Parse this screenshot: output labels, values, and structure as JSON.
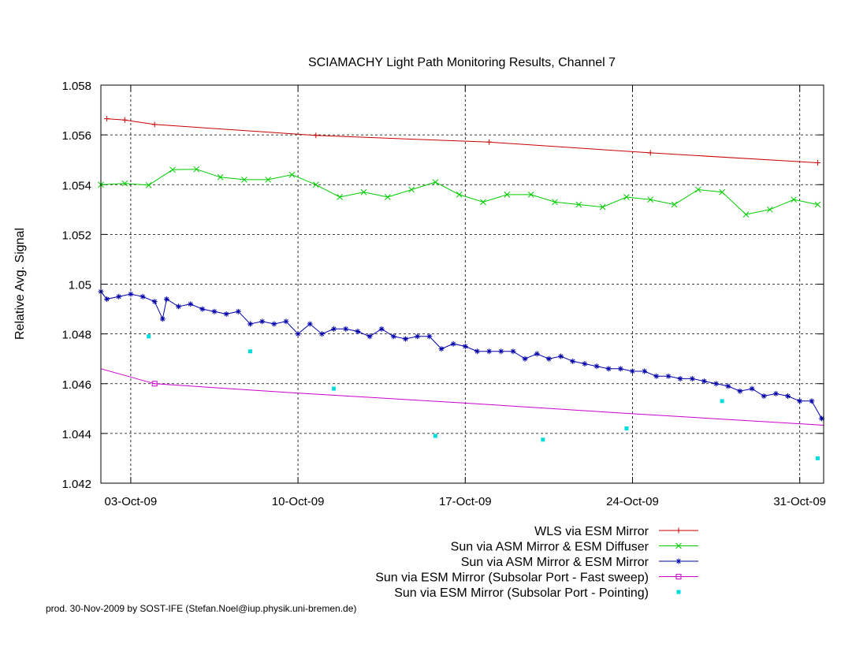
{
  "chart_data": {
    "type": "line",
    "title": "SCIAMACHY Light Path Monitoring Results, Channel 7",
    "ylabel": "Relative Avg. Signal",
    "xlabel": "",
    "x_axis_type": "date",
    "xlim": [
      "2009-10-01T18:00",
      "2009-11-01T00:00"
    ],
    "ylim": [
      1.042,
      1.058
    ],
    "yticks": [
      1.042,
      1.044,
      1.046,
      1.048,
      1.05,
      1.052,
      1.054,
      1.056,
      1.058
    ],
    "ytick_labels": [
      "1.042",
      "1.044",
      "1.046",
      "1.048",
      "1.05",
      "1.052",
      "1.054",
      "1.056",
      "1.058"
    ],
    "xticks": [
      "2009-10-03",
      "2009-10-10",
      "2009-10-17",
      "2009-10-24",
      "2009-10-31"
    ],
    "xtick_labels": [
      "03-Oct-09",
      "10-Oct-09",
      "17-Oct-09",
      "24-Oct-09",
      "31-Oct-09"
    ],
    "grid": true,
    "legend_position": "below plot, right-aligned",
    "series": [
      {
        "name": "WLS via ESM Mirror",
        "color": "#cc0000",
        "marker": "plus",
        "x": [
          "2009-10-02T00:00",
          "2009-10-02T18:00",
          "2009-10-04T00:00",
          "2009-10-10T18:00",
          "2009-10-18T00:00",
          "2009-10-24T18:00",
          "2009-10-31T18:00"
        ],
        "values": [
          1.05665,
          1.0566,
          1.05642,
          1.05598,
          1.05571,
          1.05528,
          1.05488
        ]
      },
      {
        "name": "Sun via ASM Mirror & ESM Diffuser",
        "color": "#00cc00",
        "marker": "cross",
        "x": [
          "2009-10-01T18:00",
          "2009-10-02T18:00",
          "2009-10-03T18:00",
          "2009-10-04T18:00",
          "2009-10-05T18:00",
          "2009-10-06T18:00",
          "2009-10-07T18:00",
          "2009-10-08T18:00",
          "2009-10-09T18:00",
          "2009-10-10T18:00",
          "2009-10-11T18:00",
          "2009-10-12T18:00",
          "2009-10-13T18:00",
          "2009-10-14T18:00",
          "2009-10-15T18:00",
          "2009-10-16T18:00",
          "2009-10-17T18:00",
          "2009-10-18T18:00",
          "2009-10-19T18:00",
          "2009-10-20T18:00",
          "2009-10-21T18:00",
          "2009-10-22T18:00",
          "2009-10-23T18:00",
          "2009-10-24T18:00",
          "2009-10-25T18:00",
          "2009-10-26T18:00",
          "2009-10-27T18:00",
          "2009-10-28T18:00",
          "2009-10-29T18:00",
          "2009-10-30T18:00",
          "2009-10-31T18:00"
        ],
        "values": [
          1.054,
          1.05405,
          1.05398,
          1.0546,
          1.05462,
          1.0543,
          1.0542,
          1.0542,
          1.0544,
          1.054,
          1.0535,
          1.0537,
          1.0535,
          1.0538,
          1.0541,
          1.0536,
          1.0533,
          1.0536,
          1.0536,
          1.0533,
          1.0532,
          1.0531,
          1.0535,
          1.0534,
          1.0532,
          1.0538,
          1.0537,
          1.0528,
          1.053,
          1.0534,
          1.0532
        ]
      },
      {
        "name": "Sun via ASM Mirror & ESM Mirror",
        "color": "#0000aa",
        "marker": "star",
        "x": [
          "2009-10-01T18:00",
          "2009-10-02T00:00",
          "2009-10-02T12:00",
          "2009-10-03T00:00",
          "2009-10-03T12:00",
          "2009-10-04T00:00",
          "2009-10-04T08:00",
          "2009-10-04T12:00",
          "2009-10-05T00:00",
          "2009-10-05T12:00",
          "2009-10-06T00:00",
          "2009-10-06T12:00",
          "2009-10-07T00:00",
          "2009-10-07T12:00",
          "2009-10-08T00:00",
          "2009-10-08T12:00",
          "2009-10-09T00:00",
          "2009-10-09T12:00",
          "2009-10-10T00:00",
          "2009-10-10T12:00",
          "2009-10-11T00:00",
          "2009-10-11T12:00",
          "2009-10-12T00:00",
          "2009-10-12T12:00",
          "2009-10-13T00:00",
          "2009-10-13T12:00",
          "2009-10-14T00:00",
          "2009-10-14T12:00",
          "2009-10-15T00:00",
          "2009-10-15T12:00",
          "2009-10-16T00:00",
          "2009-10-16T12:00",
          "2009-10-17T00:00",
          "2009-10-17T12:00",
          "2009-10-18T00:00",
          "2009-10-18T12:00",
          "2009-10-19T00:00",
          "2009-10-19T12:00",
          "2009-10-20T00:00",
          "2009-10-20T12:00",
          "2009-10-21T00:00",
          "2009-10-21T12:00",
          "2009-10-22T00:00",
          "2009-10-22T12:00",
          "2009-10-23T00:00",
          "2009-10-23T12:00",
          "2009-10-24T00:00",
          "2009-10-24T12:00",
          "2009-10-25T00:00",
          "2009-10-25T12:00",
          "2009-10-26T00:00",
          "2009-10-26T12:00",
          "2009-10-27T00:00",
          "2009-10-27T12:00",
          "2009-10-28T00:00",
          "2009-10-28T12:00",
          "2009-10-29T00:00",
          "2009-10-29T12:00",
          "2009-10-30T00:00",
          "2009-10-30T12:00",
          "2009-10-31T00:00",
          "2009-10-31T12:00",
          "2009-10-31T22:00"
        ],
        "values": [
          1.0497,
          1.0494,
          1.0495,
          1.0496,
          1.0495,
          1.0493,
          1.0486,
          1.0494,
          1.0491,
          1.0492,
          1.049,
          1.0489,
          1.0488,
          1.0489,
          1.0484,
          1.0485,
          1.0484,
          1.0485,
          1.048,
          1.0484,
          1.048,
          1.0482,
          1.0482,
          1.0481,
          1.0479,
          1.0482,
          1.0479,
          1.0478,
          1.0479,
          1.0479,
          1.0474,
          1.0476,
          1.0475,
          1.0473,
          1.0473,
          1.0473,
          1.0473,
          1.047,
          1.0472,
          1.047,
          1.0471,
          1.0469,
          1.0468,
          1.0467,
          1.0466,
          1.0466,
          1.0465,
          1.0465,
          1.0463,
          1.0463,
          1.0462,
          1.0462,
          1.0461,
          1.046,
          1.0459,
          1.0457,
          1.0458,
          1.0455,
          1.0456,
          1.0455,
          1.0453,
          1.0453,
          1.0446
        ]
      },
      {
        "name": "Sun via ESM Mirror (Subsolar Port - Fast sweep)",
        "color": "#cc00cc",
        "marker": "square-open",
        "x": [
          "2009-10-01T18:00",
          "2009-10-04T00:00",
          "2009-10-10T00:00",
          "2009-10-17T00:00",
          "2009-10-24T00:00",
          "2009-10-31T00:00",
          "2009-11-01T00:00"
        ],
        "values": [
          1.0466,
          1.046,
          1.04562,
          1.04522,
          1.04479,
          1.04439,
          1.04433
        ],
        "marker_indices": [
          1
        ]
      },
      {
        "name": "Sun via ESM Mirror (Subsolar Port - Pointing)",
        "color": "#00dddd",
        "marker": "square-filled",
        "line": false,
        "x": [
          "2009-10-03T18:00",
          "2009-10-08T00:00",
          "2009-10-11T12:00",
          "2009-10-15T18:00",
          "2009-10-20T06:00",
          "2009-10-23T18:00",
          "2009-10-27T18:00",
          "2009-10-31T18:00"
        ],
        "values": [
          1.0479,
          1.0473,
          1.0458,
          1.0439,
          1.04375,
          1.0442,
          1.0453,
          1.043
        ]
      }
    ]
  },
  "footer": "prod. 30-Nov-2009 by SOST-IFE (Stefan.Noel@iup.physik.uni-bremen.de)"
}
